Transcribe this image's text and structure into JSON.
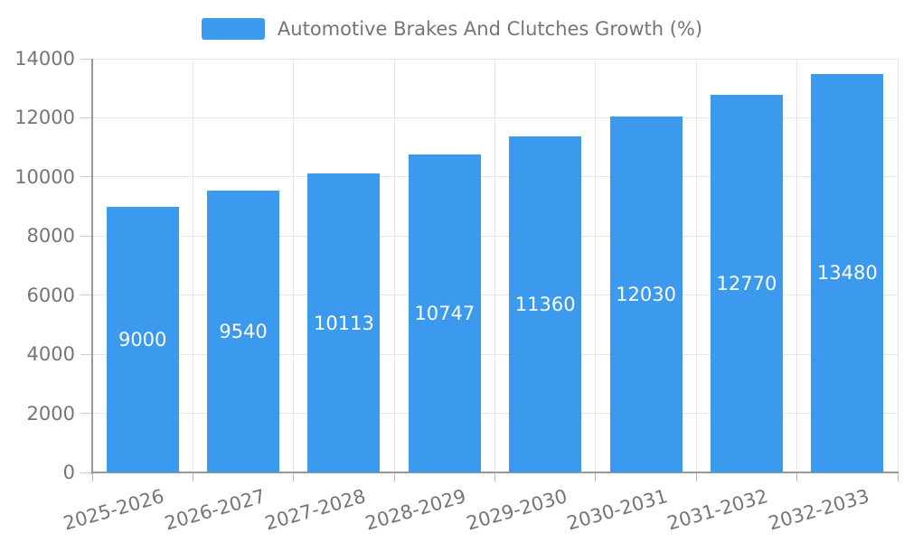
{
  "chart_data": {
    "type": "bar",
    "title": "Automotive Brakes And Clutches Growth (%)",
    "legend_entries": [
      "Automotive Brakes And Clutches Growth (%)"
    ],
    "legend_position": "top-center",
    "categories": [
      "2025-2026",
      "2026-2027",
      "2027-2028",
      "2028-2029",
      "2029-2030",
      "2030-2031",
      "2031-2032",
      "2032-2033"
    ],
    "series": [
      {
        "name": "Automotive Brakes And Clutches Growth (%)",
        "values": [
          9000,
          9540,
          10113,
          10747,
          11360,
          12030,
          12770,
          13480
        ]
      }
    ],
    "data_labels": [
      "9000",
      "9540",
      "10113",
      "10747",
      "11360",
      "12030",
      "12770",
      "13480"
    ],
    "data_label_position": "inside-middle",
    "xlabel": "",
    "ylabel": "",
    "ylim": [
      0,
      14000
    ],
    "y_ticks": [
      0,
      2000,
      4000,
      6000,
      8000,
      10000,
      12000,
      14000
    ],
    "grid": true,
    "colors": {
      "bar": "#3b9aee",
      "bar_label": "#ffffff",
      "axis_line": "#999999",
      "grid_line": "#e6e6e6",
      "tick_line": "#bbbbbb",
      "axis_text": "#757575",
      "background": "#ffffff"
    }
  }
}
